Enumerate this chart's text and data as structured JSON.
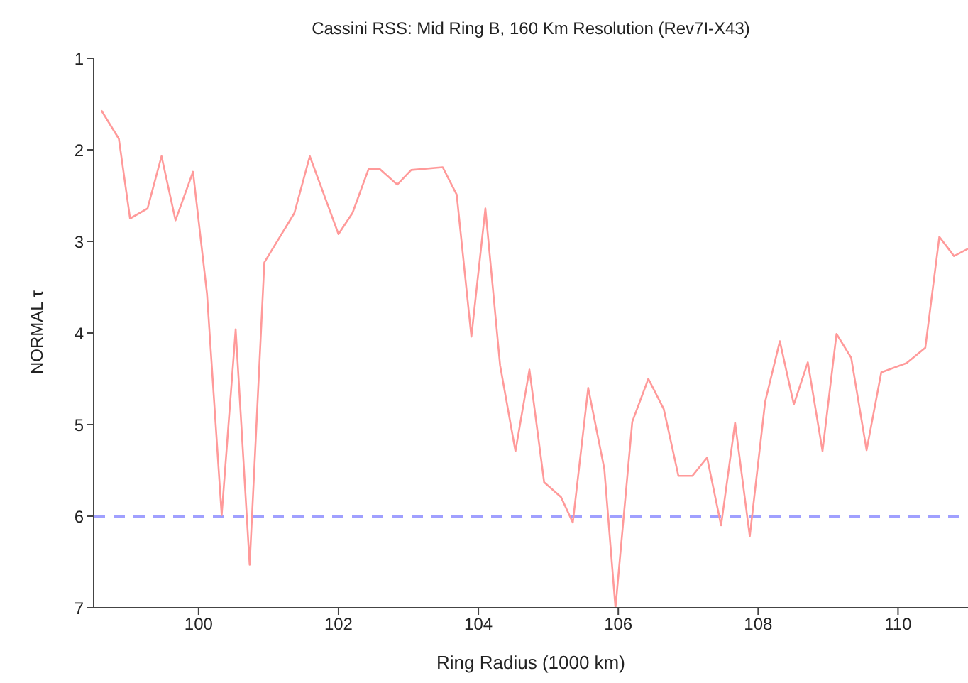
{
  "chart_data": {
    "type": "line",
    "title": "Cassini RSS: Mid Ring B, 160 Km Resolution (Rev7I-X43)",
    "xlabel": "Ring Radius (1000 km)",
    "ylabel": "NORMAL τ",
    "x": [
      98.61,
      98.86,
      99.02,
      99.27,
      99.47,
      99.67,
      99.92,
      100.12,
      100.33,
      100.53,
      100.73,
      100.94,
      101.37,
      101.59,
      102.0,
      102.2,
      102.43,
      102.59,
      102.84,
      103.04,
      103.49,
      103.69,
      103.9,
      104.1,
      104.31,
      104.53,
      104.73,
      104.94,
      105.18,
      105.35,
      105.57,
      105.8,
      105.96,
      106.2,
      106.43,
      106.65,
      106.86,
      107.06,
      107.27,
      107.47,
      107.67,
      107.88,
      108.1,
      108.31,
      108.51,
      108.71,
      108.92,
      109.12,
      109.33,
      109.55,
      109.76,
      110.12,
      110.39,
      110.59,
      110.8,
      111.0
    ],
    "series": [
      {
        "color": "#ff9a9a",
        "values": [
          1.57,
          1.88,
          2.75,
          2.64,
          2.07,
          2.77,
          2.24,
          3.57,
          5.99,
          3.96,
          6.53,
          3.23,
          2.69,
          2.07,
          2.92,
          2.69,
          2.21,
          2.21,
          2.38,
          2.22,
          2.19,
          2.49,
          4.04,
          2.64,
          4.35,
          5.29,
          4.4,
          5.63,
          5.79,
          6.07,
          4.6,
          5.48,
          7.0,
          4.97,
          4.5,
          4.83,
          5.56,
          5.56,
          5.36,
          6.1,
          4.98,
          6.22,
          4.75,
          4.09,
          4.78,
          4.32,
          5.29,
          4.01,
          4.27,
          5.28,
          4.43,
          4.33,
          4.16,
          2.95,
          3.16,
          3.08
        ]
      }
    ],
    "xlim": [
      98.5,
      111
    ],
    "xticks": [
      100,
      102,
      104,
      106,
      108,
      110
    ],
    "ylim": [
      7,
      1
    ],
    "yticks": [
      1,
      2,
      3,
      4,
      5,
      6,
      7
    ],
    "ref_lines": [
      {
        "axis": "y",
        "value": 6,
        "color": "#a0a0ff",
        "line_style": "dashed"
      }
    ],
    "grid": false,
    "legend": false,
    "marker": "none",
    "line_style": "solid"
  }
}
